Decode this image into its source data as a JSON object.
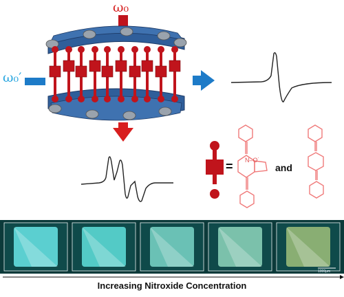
{
  "labels": {
    "omega0": "ω₀",
    "omega0_prime": "ω₀′",
    "equals": "=",
    "and": "and",
    "nitroxide_radical": "N–O˙",
    "scale_bar": "1000μm",
    "caption": "Increasing Nitroxide Concentration"
  },
  "colors": {
    "red_pillar": "#c0141c",
    "blue_arrow": "#1d7bc8",
    "light_blue_label": "#2aa7e0",
    "framework_blue": "#2f5e9a",
    "framework_gray": "#9aa3ad",
    "molecule_line": "#f07a7a",
    "crystal_bg": "#0c3a3a"
  },
  "crystals": [
    {
      "name": "crystal-1",
      "tint": "#68e6e8"
    },
    {
      "name": "crystal-2",
      "tint": "#5fe0dc"
    },
    {
      "name": "crystal-3",
      "tint": "#7ad6c8"
    },
    {
      "name": "crystal-4",
      "tint": "#8ed6bc"
    },
    {
      "name": "crystal-5",
      "tint": "#9fbf7a"
    }
  ]
}
